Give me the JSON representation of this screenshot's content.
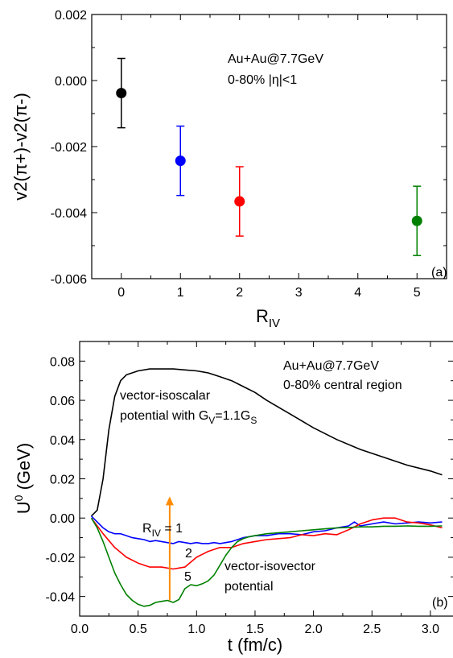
{
  "chart_data": [
    {
      "id": "a",
      "type": "scatter",
      "panel_label": "(a)",
      "xlabel_main": "R",
      "xlabel_sub": "IV",
      "ylabel": "v2(π+)-v2(π-)",
      "xlim": [
        -0.5,
        5.5
      ],
      "ylim": [
        -0.006,
        0.002
      ],
      "xticks": [
        0,
        1,
        2,
        3,
        4,
        5
      ],
      "yticks": [
        -0.006,
        -0.004,
        -0.002,
        0.0,
        0.002
      ],
      "xtick_labels": [
        "0",
        "1",
        "2",
        "3",
        "4",
        "5"
      ],
      "ytick_labels": [
        "-0.006",
        "-0.004",
        "-0.002",
        "0.000",
        "0.002"
      ],
      "annotations": [
        "Au+Au@7.7GeV",
        "0-80% |η|<1"
      ],
      "points": [
        {
          "x": 0,
          "y": -0.00038,
          "err": 0.00105,
          "color": "#000000"
        },
        {
          "x": 1,
          "y": -0.00243,
          "err": 0.00105,
          "color": "#0000ff"
        },
        {
          "x": 2,
          "y": -0.00366,
          "err": 0.00105,
          "color": "#ff0000"
        },
        {
          "x": 5,
          "y": -0.00425,
          "err": 0.00105,
          "color": "#008000"
        }
      ]
    },
    {
      "id": "b",
      "type": "line",
      "panel_label": "(b)",
      "xlabel": "t (fm/c)",
      "ylabel_main": "U",
      "ylabel_sup": "0",
      "ylabel_unit": " (GeV)",
      "xlim": [
        0.0,
        3.2
      ],
      "ylim": [
        -0.05,
        0.09
      ],
      "xticks": [
        0.0,
        0.5,
        1.0,
        1.5,
        2.0,
        2.5,
        3.0
      ],
      "yticks": [
        -0.04,
        -0.02,
        0.0,
        0.02,
        0.04,
        0.06,
        0.08
      ],
      "xtick_labels": [
        "0.0",
        "0.5",
        "1.0",
        "1.5",
        "2.0",
        "2.5",
        "3.0"
      ],
      "ytick_labels": [
        "-0.04",
        "-0.02",
        "0.00",
        "0.02",
        "0.04",
        "0.06",
        "0.08"
      ],
      "annotations": [
        "Au+Au@7.7GeV",
        "0-80% central region"
      ],
      "isoscalar_label_line1": "vector-isoscalar",
      "isoscalar_label_line2": "potential with G",
      "isoscalar_label_sub1": "V",
      "isoscalar_label_mid": "=1.1G",
      "isoscalar_label_sub2": "S",
      "isovector_label_line1": "vector-isovector",
      "isovector_label_line2": "potential",
      "riv_label_main": "R",
      "riv_label_sub": "IV",
      "riv_label_eq": " = 1",
      "curve_label_2": "2",
      "curve_label_5": "5",
      "arrow": {
        "x": 0.77,
        "y_from": -0.042,
        "y_to": 0.011,
        "color": "#ff8c00"
      },
      "series": [
        {
          "key": "scalar",
          "color": "#000000",
          "x": [
            0.1,
            0.15,
            0.2,
            0.25,
            0.3,
            0.35,
            0.4,
            0.5,
            0.6,
            0.7,
            0.8,
            0.9,
            1.0,
            1.1,
            1.2,
            1.3,
            1.4,
            1.5,
            1.6,
            1.8,
            2.0,
            2.2,
            2.4,
            2.6,
            2.8,
            3.0,
            3.1
          ],
          "y": [
            0.001,
            0.004,
            0.02,
            0.045,
            0.062,
            0.07,
            0.073,
            0.075,
            0.076,
            0.076,
            0.076,
            0.0755,
            0.075,
            0.074,
            0.072,
            0.07,
            0.067,
            0.064,
            0.06,
            0.053,
            0.046,
            0.04,
            0.035,
            0.031,
            0.027,
            0.024,
            0.022
          ]
        },
        {
          "key": "riv1",
          "color": "#0000ff",
          "x": [
            0.1,
            0.15,
            0.2,
            0.25,
            0.3,
            0.35,
            0.4,
            0.45,
            0.5,
            0.55,
            0.6,
            0.65,
            0.7,
            0.75,
            0.8,
            0.85,
            0.9,
            0.95,
            1.0,
            1.05,
            1.1,
            1.15,
            1.2,
            1.25,
            1.3,
            1.35,
            1.4,
            1.45,
            1.5,
            1.6,
            1.7,
            1.8,
            1.9,
            2.0,
            2.1,
            2.2,
            2.3,
            2.35,
            2.4,
            2.5,
            2.6,
            2.7,
            2.8,
            2.9,
            3.0,
            3.1
          ],
          "y": [
            0.001,
            -0.002,
            -0.005,
            -0.007,
            -0.008,
            -0.008,
            -0.009,
            -0.01,
            -0.0105,
            -0.011,
            -0.012,
            -0.0115,
            -0.012,
            -0.0125,
            -0.013,
            -0.012,
            -0.0125,
            -0.013,
            -0.0125,
            -0.013,
            -0.013,
            -0.0125,
            -0.013,
            -0.0125,
            -0.012,
            -0.011,
            -0.01,
            -0.0095,
            -0.009,
            -0.009,
            -0.008,
            -0.008,
            -0.0085,
            -0.007,
            -0.0065,
            -0.005,
            -0.004,
            -0.002,
            -0.004,
            -0.003,
            -0.002,
            -0.003,
            -0.0025,
            -0.002,
            -0.0025,
            -0.002
          ]
        },
        {
          "key": "riv2",
          "color": "#ff0000",
          "x": [
            0.1,
            0.2,
            0.3,
            0.4,
            0.5,
            0.6,
            0.7,
            0.8,
            0.9,
            1.0,
            1.1,
            1.2,
            1.3,
            1.4,
            1.5,
            1.6,
            1.7,
            1.8,
            1.9,
            2.0,
            2.1,
            2.2,
            2.3,
            2.4,
            2.5,
            2.6,
            2.7,
            2.8,
            2.9,
            3.0,
            3.1
          ],
          "y": [
            0.0,
            -0.008,
            -0.015,
            -0.02,
            -0.023,
            -0.025,
            -0.025,
            -0.026,
            -0.025,
            -0.02,
            -0.017,
            -0.015,
            -0.015,
            -0.013,
            -0.012,
            -0.011,
            -0.0105,
            -0.01,
            -0.0085,
            -0.009,
            -0.008,
            -0.0085,
            -0.006,
            -0.003,
            -0.001,
            0.0,
            0.0,
            -0.002,
            -0.0025,
            -0.0035,
            -0.005
          ]
        },
        {
          "key": "riv5",
          "color": "#008000",
          "x": [
            0.1,
            0.15,
            0.2,
            0.25,
            0.3,
            0.35,
            0.4,
            0.45,
            0.5,
            0.55,
            0.6,
            0.65,
            0.7,
            0.75,
            0.8,
            0.85,
            0.9,
            0.95,
            1.0,
            1.05,
            1.1,
            1.15,
            1.2,
            1.25,
            1.3,
            1.35,
            1.4,
            1.45,
            1.5,
            1.6,
            1.7,
            1.8,
            1.9,
            2.0,
            2.1,
            2.2,
            2.3,
            2.4,
            2.5,
            2.6,
            2.7,
            2.8,
            2.9,
            3.0,
            3.1
          ],
          "y": [
            0.0,
            -0.005,
            -0.012,
            -0.02,
            -0.028,
            -0.034,
            -0.039,
            -0.042,
            -0.044,
            -0.045,
            -0.0445,
            -0.043,
            -0.0425,
            -0.042,
            -0.043,
            -0.0415,
            -0.036,
            -0.034,
            -0.0345,
            -0.0335,
            -0.032,
            -0.029,
            -0.024,
            -0.019,
            -0.015,
            -0.012,
            -0.0105,
            -0.0095,
            -0.009,
            -0.008,
            -0.0075,
            -0.007,
            -0.0065,
            -0.006,
            -0.0055,
            -0.005,
            -0.0048,
            -0.0045,
            -0.0045,
            -0.0042,
            -0.0042,
            -0.004,
            -0.0042,
            -0.0042,
            -0.004
          ]
        }
      ]
    }
  ]
}
